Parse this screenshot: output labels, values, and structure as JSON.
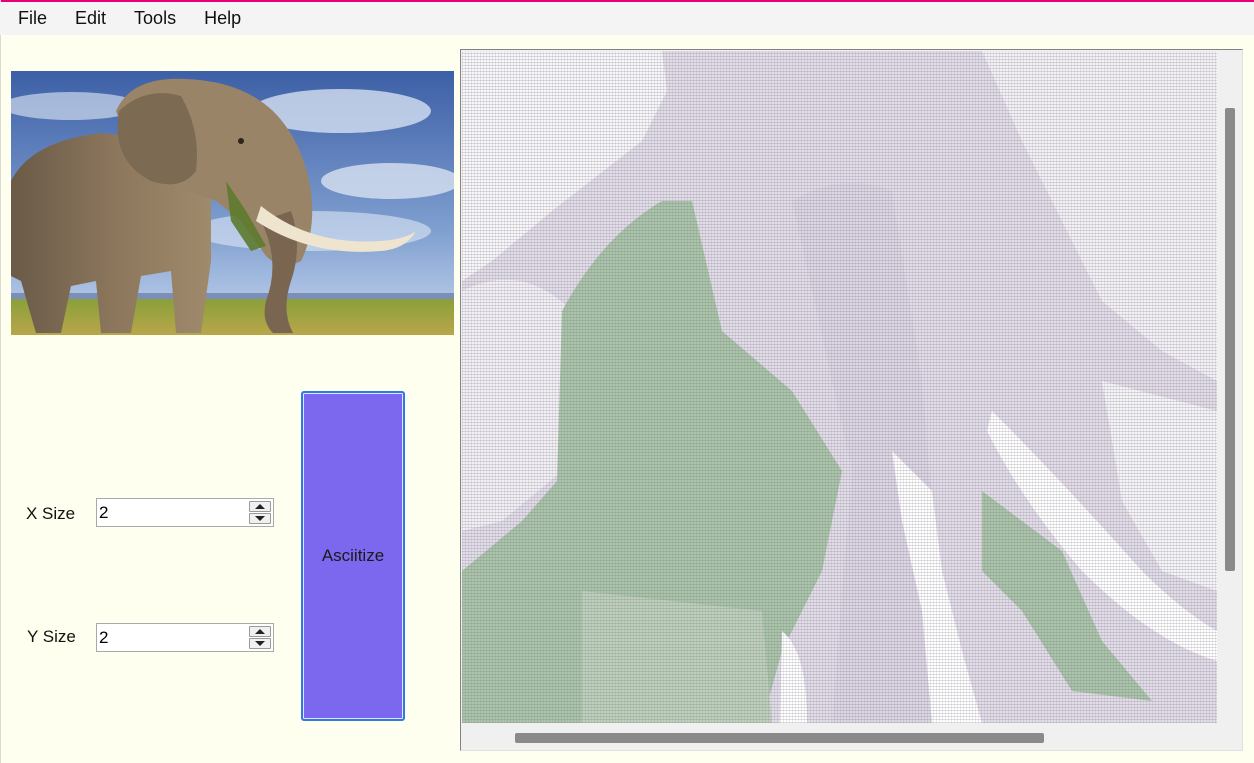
{
  "menu": {
    "items": [
      "File",
      "Edit",
      "Tools",
      "Help"
    ]
  },
  "controls": {
    "x_size": {
      "label": "X Size",
      "value": "2"
    },
    "y_size": {
      "label": "Y Size",
      "value": "2"
    },
    "asciitize_label": "Asciitize"
  },
  "colors": {
    "accent": "#e8007a",
    "button": "#7b68ee",
    "background": "#fffff0",
    "ascii_green": "#a9c4a8",
    "ascii_lavender": "#d9d3e2"
  }
}
